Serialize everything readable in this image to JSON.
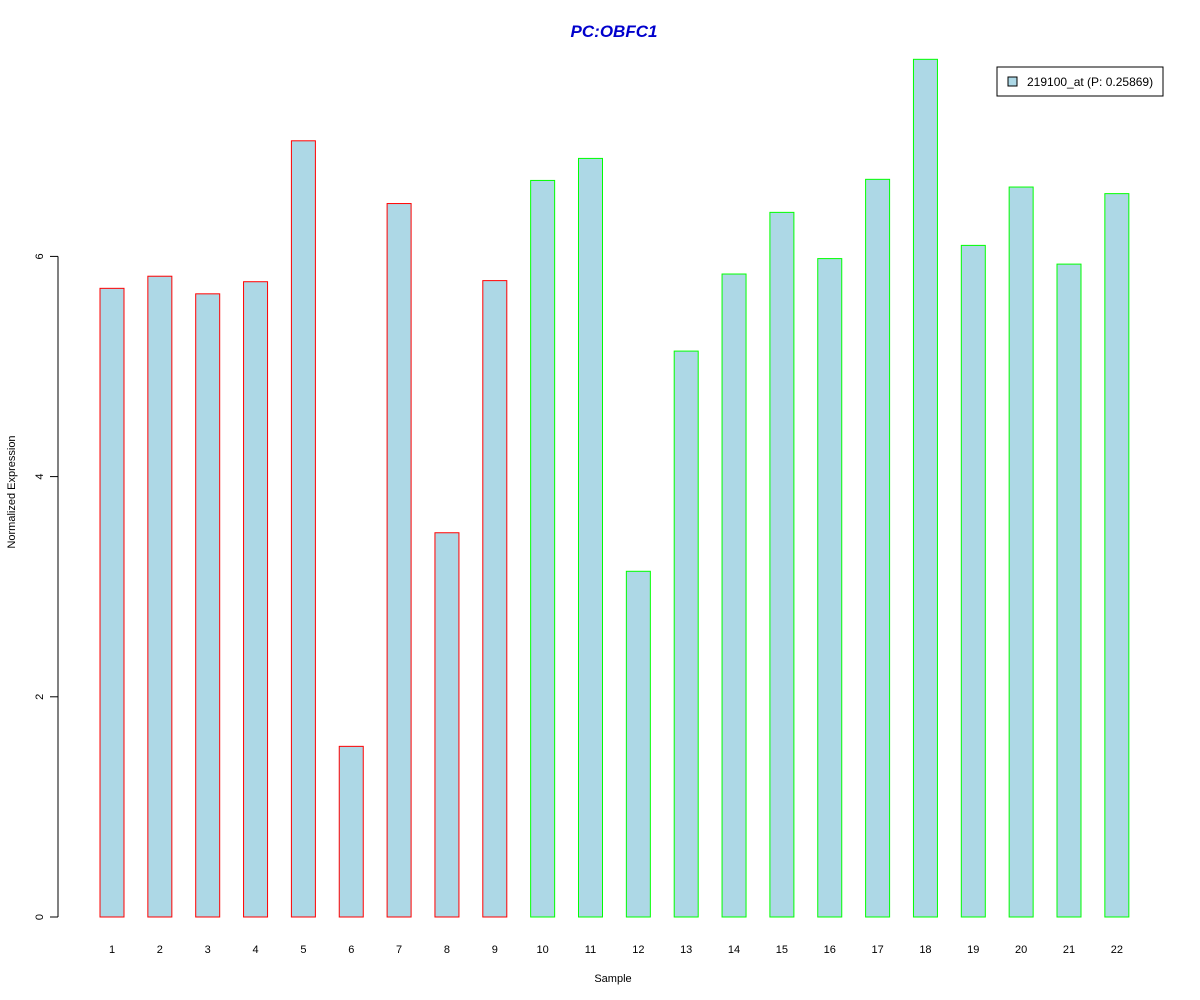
{
  "chart_data": {
    "type": "bar",
    "title": "PC:OBFC1",
    "xlabel": "Sample",
    "ylabel": "Normalized Expression",
    "categories": [
      "1",
      "2",
      "3",
      "4",
      "5",
      "6",
      "7",
      "8",
      "9",
      "10",
      "11",
      "12",
      "13",
      "14",
      "15",
      "16",
      "17",
      "18",
      "19",
      "20",
      "21",
      "22"
    ],
    "series": [
      {
        "name": "219100_at (P: 0.25869)",
        "values": [
          5.71,
          5.82,
          5.66,
          5.77,
          7.05,
          1.55,
          6.48,
          3.49,
          5.78,
          6.69,
          6.89,
          3.14,
          5.14,
          5.84,
          6.4,
          5.98,
          6.7,
          7.79,
          6.1,
          6.63,
          5.93,
          6.57
        ]
      }
    ],
    "group_border_colors": [
      "#ff0000",
      "#ff0000",
      "#ff0000",
      "#ff0000",
      "#ff0000",
      "#ff0000",
      "#ff0000",
      "#ff0000",
      "#ff0000",
      "#00ff00",
      "#00ff00",
      "#00ff00",
      "#00ff00",
      "#00ff00",
      "#00ff00",
      "#00ff00",
      "#00ff00",
      "#00ff00",
      "#00ff00",
      "#00ff00",
      "#00ff00",
      "#00ff00"
    ],
    "bar_fill": "#add8e6",
    "title_color": "#0000cc",
    "ylim": [
      0,
      8
    ],
    "yticks": [
      0,
      2,
      4,
      6
    ],
    "grid": false,
    "legend_position": "top-right"
  }
}
